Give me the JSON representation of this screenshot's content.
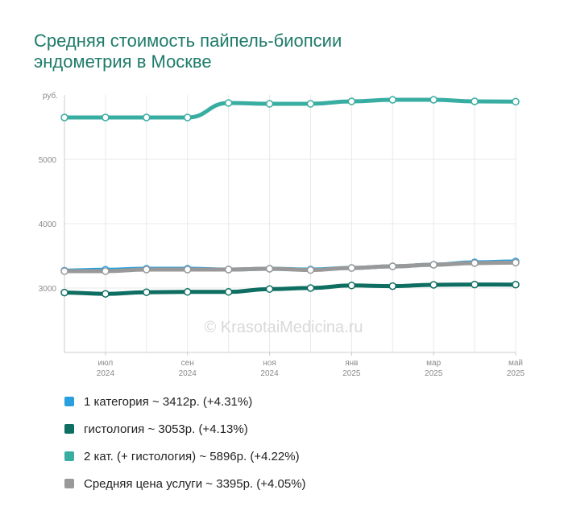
{
  "page": {
    "title_line1": "Средняя стоимость пайпель-биопсии",
    "title_line2": "эндометрия в Москве"
  },
  "chart_data": {
    "type": "line",
    "title": "Средняя стоимость пайпель-биопсии эндометрия в Москве",
    "y_unit_label": "руб.",
    "ylim": [
      2000,
      6000
    ],
    "y_ticks": [
      3000,
      4000,
      5000
    ],
    "grid": true,
    "watermark": "© KrasotaiMedicina.ru",
    "x": [
      "2024-06",
      "2024-07",
      "2024-08",
      "2024-09",
      "2024-10",
      "2024-11",
      "2024-12",
      "2025-01",
      "2025-02",
      "2025-03",
      "2025-04",
      "2025-05"
    ],
    "x_tick_labels": [
      {
        "month": "июл",
        "year": "2024"
      },
      {
        "month": "сен",
        "year": "2024"
      },
      {
        "month": "ноя",
        "year": "2024"
      },
      {
        "month": "янв",
        "year": "2025"
      },
      {
        "month": "мар",
        "year": "2025"
      },
      {
        "month": "май",
        "year": "2025"
      }
    ],
    "series": [
      {
        "name": "1 категория",
        "color": "#29a0dd",
        "values": [
          3271,
          3285,
          3300,
          3300,
          3288,
          3300,
          3288,
          3312,
          3337,
          3362,
          3400,
          3412
        ]
      },
      {
        "name": "2 кат. (+ гистология)",
        "color": "#38ada2",
        "values": [
          5650,
          5650,
          5650,
          5650,
          5875,
          5862,
          5862,
          5900,
          5925,
          5925,
          5900,
          5896
        ]
      },
      {
        "name": "гистология",
        "color": "#0f6e62",
        "values": [
          2930,
          2910,
          2935,
          2940,
          2940,
          2985,
          3000,
          3040,
          3030,
          3050,
          3055,
          3053
        ]
      },
      {
        "name": "Средняя цена услуги",
        "color": "#999999",
        "values": [
          3262,
          3262,
          3288,
          3288,
          3288,
          3300,
          3280,
          3312,
          3337,
          3362,
          3388,
          3395
        ]
      }
    ]
  },
  "legend": [
    {
      "label": "1 категория ~ 3412р. (+4.31%)",
      "color": "#29a0dd"
    },
    {
      "label": "гистология ~ 3053р. (+4.13%)",
      "color": "#0f6e62"
    },
    {
      "label": "2 кат. (+ гистология) ~ 5896р. (+4.22%)",
      "color": "#38ada2"
    },
    {
      "label": "Средняя цена услуги ~ 3395р. (+4.05%)",
      "color": "#999999"
    }
  ]
}
